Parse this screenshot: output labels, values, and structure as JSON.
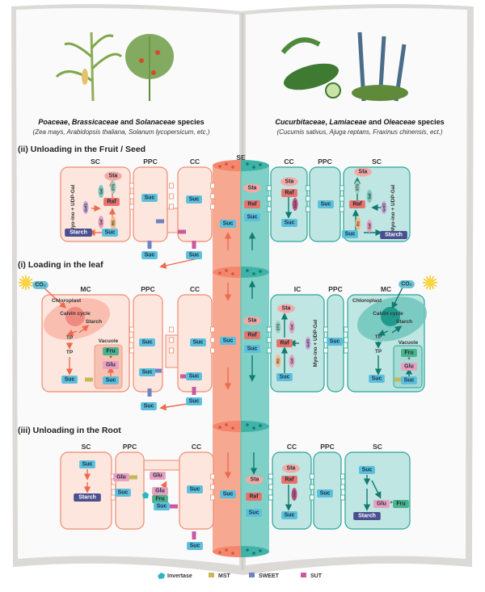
{
  "header": {
    "left": {
      "families": [
        "Poaceae",
        "Brassicaceae",
        "Solanaceae"
      ],
      "and": "and",
      "species": "species",
      "examples": "(Zea mays, Arabidopsis thaliana, Solanum lycopersicum, etc.)"
    },
    "right": {
      "families": [
        "Cucurbitaceae",
        "Lamiaceae",
        "Oleaceae"
      ],
      "and": "and",
      "species": "species",
      "examples": "(Cucumis sativus, Ajuga reptans, Fraxinus chinensis, ect.)"
    }
  },
  "sections": {
    "fruit": {
      "title": "(ii) Unloading in the Fruit / Seed"
    },
    "leaf": {
      "title": "(i) Loading in the leaf"
    },
    "root": {
      "title": "(iii) Unloading in the Root"
    }
  },
  "cells": {
    "SC": "SC",
    "PPC": "PPC",
    "CC": "CC",
    "SE": "SE",
    "MC": "MC",
    "IC": "IC"
  },
  "metabolites": {
    "suc": "Suc",
    "raf": "Raf",
    "sta": "Sta",
    "starch": "Starch",
    "fru": "Fru",
    "glu": "Glu",
    "tp": "TP",
    "co2": "CO₂",
    "plus": "+"
  },
  "enzymes": {
    "gal": "Gal",
    "sts": "STS",
    "rs": "RS",
    "gols": "GolS",
    "aga": "AGA",
    "myo": "Myo-ino  +  UDP-Gal"
  },
  "organelles": {
    "chloroplast": "Chloroplast",
    "calvin": "Calvin cycle",
    "starch": "Starch",
    "vacuole": "Vacuole"
  },
  "legend": [
    {
      "label": "Invertase",
      "color": "#2bb5c9",
      "icon": "invertase-icon"
    },
    {
      "label": "MST",
      "color": "#c9b75a",
      "icon": "mst-transporter-icon"
    },
    {
      "label": "SWEET",
      "color": "#6f82c4",
      "icon": "sweet-transporter-icon"
    },
    {
      "label": "SUT",
      "color": "#c95aa0",
      "icon": "sut-transporter-icon"
    }
  ],
  "colors": {
    "salmon_fill": "#fde6dd",
    "salmon_stroke": "#f08a70",
    "salmon_arrow": "#ee6a4e",
    "teal_fill": "#bfe6e2",
    "teal_stroke": "#2aa59a",
    "teal_arrow": "#127a70",
    "suc": "#5cc0dc",
    "raf": "#e8736a",
    "sta": "#f4aaa4",
    "starch": "#4a4f8f",
    "fru": "#4bb38c",
    "glu": "#e8a0c0"
  }
}
